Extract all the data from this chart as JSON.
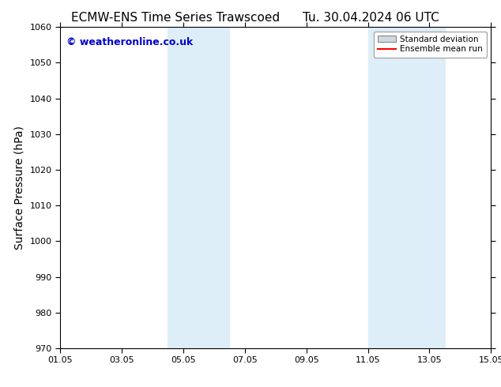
{
  "title": "ECMW-ENS Time Series Trawscoed",
  "title_right": "Tu. 30.04.2024 06 UTC",
  "ylabel": "Surface Pressure (hPa)",
  "ylim": [
    970,
    1060
  ],
  "yticks": [
    970,
    980,
    990,
    1000,
    1010,
    1020,
    1030,
    1040,
    1050,
    1060
  ],
  "xtick_labels": [
    "01.05",
    "03.05",
    "05.05",
    "07.05",
    "09.05",
    "11.05",
    "13.05",
    "15.05"
  ],
  "xtick_positions": [
    0,
    2,
    4,
    6,
    8,
    10,
    12,
    14
  ],
  "shaded_bands": [
    {
      "x_start": 3.5,
      "x_end": 5.5,
      "color": "#ddeef8"
    },
    {
      "x_start": 10.0,
      "x_end": 12.5,
      "color": "#ddeef8"
    }
  ],
  "watermark_text": "© weatheronline.co.uk",
  "watermark_color": "#0000cc",
  "watermark_fontsize": 9,
  "legend_std_color": "#d0d8e0",
  "legend_std_edge": "#888888",
  "legend_mean_color": "#ff0000",
  "bg_color": "#ffffff",
  "axis_color": "#000000",
  "title_fontsize": 11,
  "tick_fontsize": 8,
  "ylabel_fontsize": 10
}
